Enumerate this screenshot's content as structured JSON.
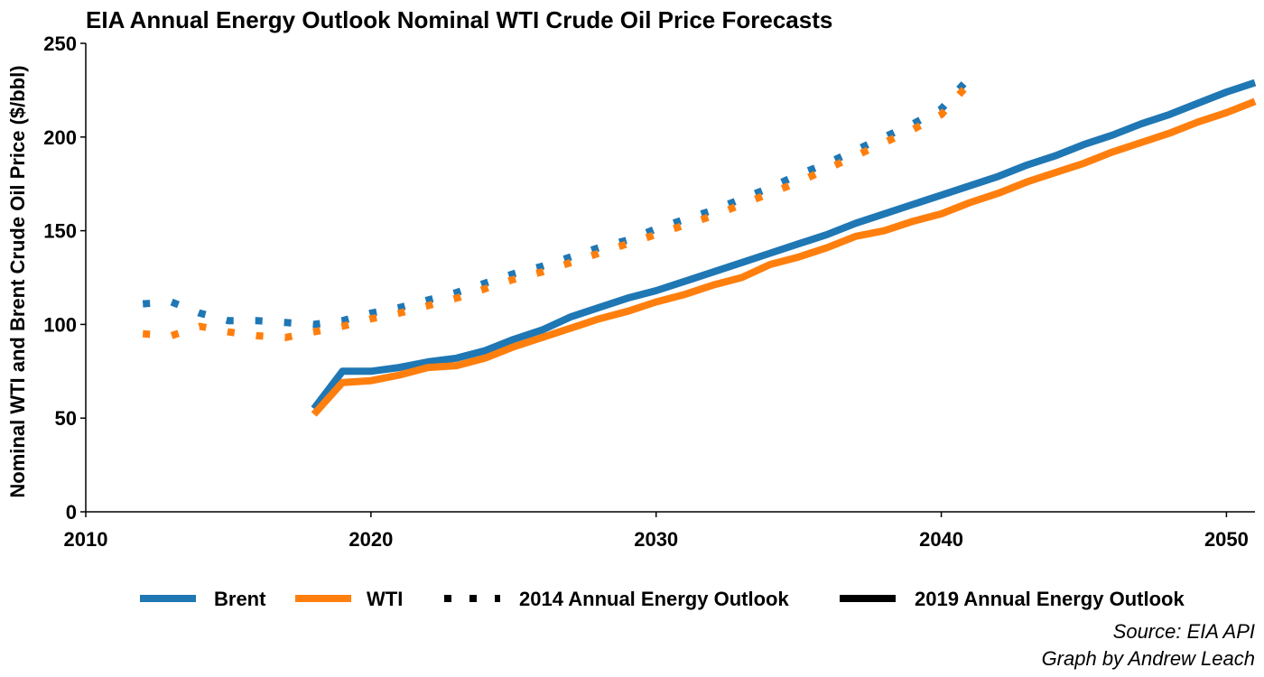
{
  "chart_data": {
    "type": "line",
    "title": "EIA Annual Energy Outlook Nominal WTI Crude Oil Price Forecasts",
    "xlabel": "",
    "ylabel": "Nominal WTI and Brent Crude Oil Price ($/bbl)",
    "xlim": [
      2010,
      2051
    ],
    "ylim": [
      0,
      250
    ],
    "x_ticks": [
      2010,
      2020,
      2030,
      2040,
      2050
    ],
    "y_ticks": [
      0,
      50,
      100,
      150,
      200,
      250
    ],
    "grid": false,
    "legend_position": "bottom",
    "legend": [
      {
        "label": "Brent",
        "kind": "color",
        "color": "#1f77b4"
      },
      {
        "label": "WTI",
        "kind": "color",
        "color": "#ff7f0e"
      },
      {
        "label": "2014 Annual Energy Outlook",
        "kind": "linetype",
        "style": "dotted"
      },
      {
        "label": "2019 Annual Energy Outlook",
        "kind": "linetype",
        "style": "solid"
      }
    ],
    "series": [
      {
        "name": "Brent",
        "outlook": "2014 Annual Energy Outlook",
        "style": "dotted",
        "color": "#1f77b4",
        "x": [
          2012,
          2013,
          2014,
          2015,
          2016,
          2017,
          2018,
          2019,
          2020,
          2021,
          2022,
          2023,
          2024,
          2025,
          2026,
          2027,
          2028,
          2029,
          2030,
          2031,
          2032,
          2033,
          2034,
          2035,
          2036,
          2037,
          2038,
          2039,
          2040,
          2041
        ],
        "y": [
          111,
          112,
          106,
          102,
          102,
          101,
          100,
          102,
          106,
          109,
          113,
          117,
          122,
          127,
          131,
          136,
          141,
          145,
          151,
          156,
          161,
          167,
          173,
          180,
          186,
          193,
          200,
          207,
          215,
          232
        ]
      },
      {
        "name": "WTI",
        "outlook": "2014 Annual Energy Outlook",
        "style": "dotted",
        "color": "#ff7f0e",
        "x": [
          2012,
          2013,
          2014,
          2015,
          2016,
          2017,
          2018,
          2019,
          2020,
          2021,
          2022,
          2023,
          2024,
          2025,
          2026,
          2027,
          2028,
          2029,
          2030,
          2031,
          2032,
          2033,
          2034,
          2035,
          2036,
          2037,
          2038,
          2039,
          2040,
          2041
        ],
        "y": [
          95,
          94,
          99,
          96,
          94,
          93,
          96,
          99,
          103,
          106,
          110,
          114,
          119,
          124,
          128,
          133,
          138,
          143,
          148,
          153,
          158,
          164,
          170,
          176,
          183,
          190,
          197,
          204,
          212,
          229
        ]
      },
      {
        "name": "Brent",
        "outlook": "2019 Annual Energy Outlook",
        "style": "solid",
        "color": "#1f77b4",
        "x": [
          2018,
          2019,
          2020,
          2021,
          2022,
          2023,
          2024,
          2025,
          2026,
          2027,
          2028,
          2029,
          2030,
          2031,
          2032,
          2033,
          2034,
          2035,
          2036,
          2037,
          2038,
          2039,
          2040,
          2041,
          2042,
          2043,
          2044,
          2045,
          2046,
          2047,
          2048,
          2049,
          2050,
          2051
        ],
        "y": [
          55,
          75,
          75,
          77,
          80,
          82,
          86,
          92,
          97,
          104,
          109,
          114,
          118,
          123,
          128,
          133,
          138,
          143,
          148,
          154,
          159,
          164,
          169,
          174,
          179,
          185,
          190,
          196,
          201,
          207,
          212,
          218,
          224,
          229
        ]
      },
      {
        "name": "WTI",
        "outlook": "2019 Annual Energy Outlook",
        "style": "solid",
        "color": "#ff7f0e",
        "x": [
          2018,
          2019,
          2020,
          2021,
          2022,
          2023,
          2024,
          2025,
          2026,
          2027,
          2028,
          2029,
          2030,
          2031,
          2032,
          2033,
          2034,
          2035,
          2036,
          2037,
          2038,
          2039,
          2040,
          2041,
          2042,
          2043,
          2044,
          2045,
          2046,
          2047,
          2048,
          2049,
          2050,
          2051
        ],
        "y": [
          52,
          69,
          70,
          73,
          77,
          78,
          82,
          88,
          93,
          98,
          103,
          107,
          112,
          116,
          121,
          125,
          132,
          136,
          141,
          147,
          150,
          155,
          159,
          165,
          170,
          176,
          181,
          186,
          192,
          197,
          202,
          208,
          213,
          219
        ]
      }
    ]
  },
  "caption": {
    "source": "Source: EIA API",
    "author": "Graph by Andrew Leach"
  }
}
